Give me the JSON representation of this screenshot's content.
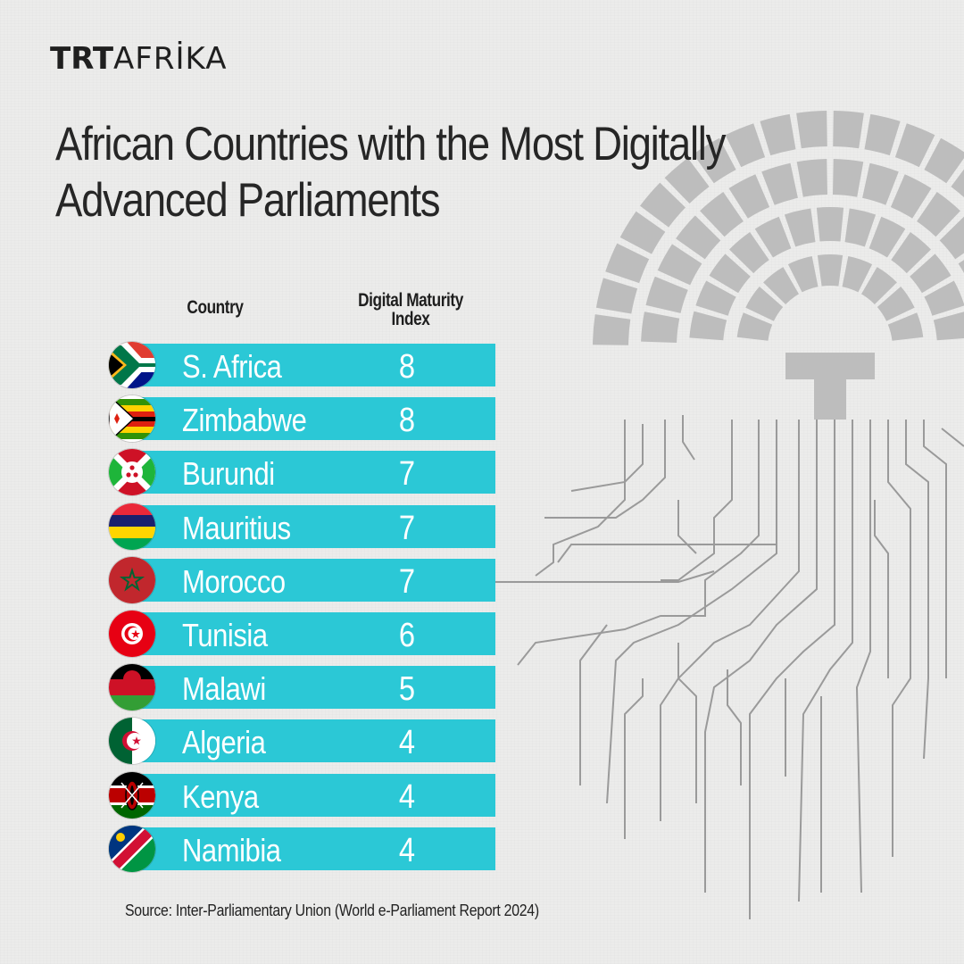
{
  "brand": {
    "part_a": "TRT",
    "part_b": "AFRİKA"
  },
  "title": "African Countries with the Most Digitally Advanced Parliaments",
  "source": "Source: Inter-Parliamentary Union (World e-Parliament Report 2024)",
  "colors": {
    "bar": "#2bc8d6",
    "text_dark": "#262626",
    "bar_text": "#ffffff"
  },
  "chart_data": {
    "type": "table",
    "columns": [
      "Country",
      "Digital Maturity Index"
    ],
    "categories": [
      "S. Africa",
      "Zimbabwe",
      "Burundi",
      "Mauritius",
      "Morocco",
      "Tunisia",
      "Malawi",
      "Algeria",
      "Kenya",
      "Namibia"
    ],
    "values": [
      8,
      8,
      7,
      7,
      7,
      6,
      5,
      4,
      4,
      4
    ],
    "flags": [
      "south-africa-flag-icon",
      "zimbabwe-flag-icon",
      "burundi-flag-icon",
      "mauritius-flag-icon",
      "morocco-flag-icon",
      "tunisia-flag-icon",
      "malawi-flag-icon",
      "algeria-flag-icon",
      "kenya-flag-icon",
      "namibia-flag-icon"
    ]
  }
}
